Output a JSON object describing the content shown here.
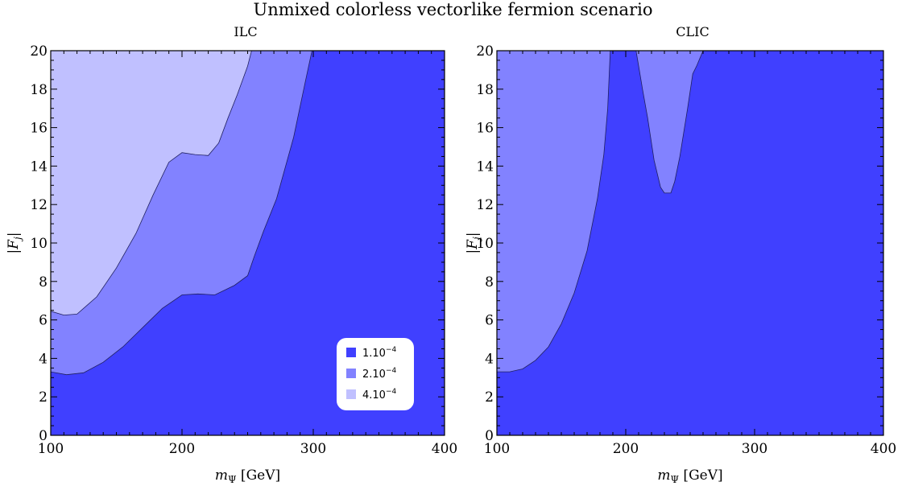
{
  "figure": {
    "title": "Unmixed colorless vectorlike fermion scenario"
  },
  "colors": {
    "band_1e-4": "#4040ff",
    "band_2e-4": "#8282ff",
    "band_4e-4": "#c0c0ff",
    "frame": "#000000"
  },
  "legend": {
    "entries": [
      {
        "label_main": "1.10",
        "label_exp": "−4",
        "color": "#4040ff"
      },
      {
        "label_main": "2.10",
        "label_exp": "−4",
        "color": "#8282ff"
      },
      {
        "label_main": "4.10",
        "label_exp": "−4",
        "color": "#c0c0ff"
      }
    ]
  },
  "chart_data": [
    {
      "type": "area",
      "title": "ILC",
      "xlabel": "m_Ψ [GeV]",
      "ylabel": "|F_j|",
      "xlim": [
        100,
        400
      ],
      "ylim": [
        0,
        20
      ],
      "xticks": [
        "100",
        "200",
        "300",
        "400"
      ],
      "yticks": [
        "0",
        "2",
        "4",
        "6",
        "8",
        "10",
        "12",
        "14",
        "16",
        "18",
        "20"
      ],
      "legend_position": "bottom-right",
      "series": [
        {
          "name": "2.10^-4",
          "boundary": [
            [
              100,
              3.3
            ],
            [
              112,
              3.15
            ],
            [
              125,
              3.25
            ],
            [
              140,
              3.8
            ],
            [
              155,
              4.6
            ],
            [
              170,
              5.6
            ],
            [
              185,
              6.6
            ],
            [
              200,
              7.3
            ],
            [
              212,
              7.35
            ],
            [
              225,
              7.3
            ],
            [
              240,
              7.8
            ],
            [
              250,
              8.3
            ],
            [
              255,
              9.3
            ],
            [
              262,
              10.6
            ],
            [
              272,
              12.3
            ],
            [
              285,
              15.5
            ],
            [
              294,
              18.4
            ],
            [
              299,
              20
            ]
          ]
        },
        {
          "name": "4.10^-4",
          "boundary": [
            [
              100,
              6.45
            ],
            [
              110,
              6.25
            ],
            [
              120,
              6.3
            ],
            [
              135,
              7.2
            ],
            [
              150,
              8.7
            ],
            [
              165,
              10.5
            ],
            [
              178,
              12.5
            ],
            [
              190,
              14.2
            ],
            [
              200,
              14.7
            ],
            [
              210,
              14.6
            ],
            [
              220,
              14.55
            ],
            [
              228,
              15.2
            ],
            [
              235,
              16.5
            ],
            [
              242,
              17.7
            ],
            [
              250,
              19.2
            ],
            [
              253,
              20
            ]
          ]
        }
      ]
    },
    {
      "type": "area",
      "title": "CLIC",
      "xlabel": "m_Ψ [GeV]",
      "ylabel": "|F_j|",
      "xlim": [
        100,
        400
      ],
      "ylim": [
        0,
        20
      ],
      "xticks": [
        "100",
        "200",
        "300",
        "400"
      ],
      "yticks": [
        "0",
        "2",
        "4",
        "6",
        "8",
        "10",
        "12",
        "14",
        "16",
        "18",
        "20"
      ],
      "series": [
        {
          "name": "2.10^-4 (left region)",
          "boundary": [
            [
              100,
              3.3
            ],
            [
              110,
              3.3
            ],
            [
              120,
              3.45
            ],
            [
              130,
              3.9
            ],
            [
              140,
              4.6
            ],
            [
              150,
              5.8
            ],
            [
              160,
              7.4
            ],
            [
              170,
              9.6
            ],
            [
              178,
              12.3
            ],
            [
              183,
              14.6
            ],
            [
              186,
              17.0
            ],
            [
              188,
              20
            ]
          ]
        },
        {
          "name": "2.10^-4 (right region)",
          "boundary": [
            [
              208,
              20
            ],
            [
              210,
              19.2
            ],
            [
              213,
              18.0
            ],
            [
              217,
              16.5
            ],
            [
              222,
              14.3
            ],
            [
              227,
              12.9
            ],
            [
              230,
              12.6
            ],
            [
              235,
              12.6
            ],
            [
              238,
              13.2
            ],
            [
              242,
              14.5
            ],
            [
              248,
              17.0
            ],
            [
              252,
              18.8
            ],
            [
              255,
              19.2
            ],
            [
              260,
              20
            ]
          ]
        }
      ]
    }
  ]
}
